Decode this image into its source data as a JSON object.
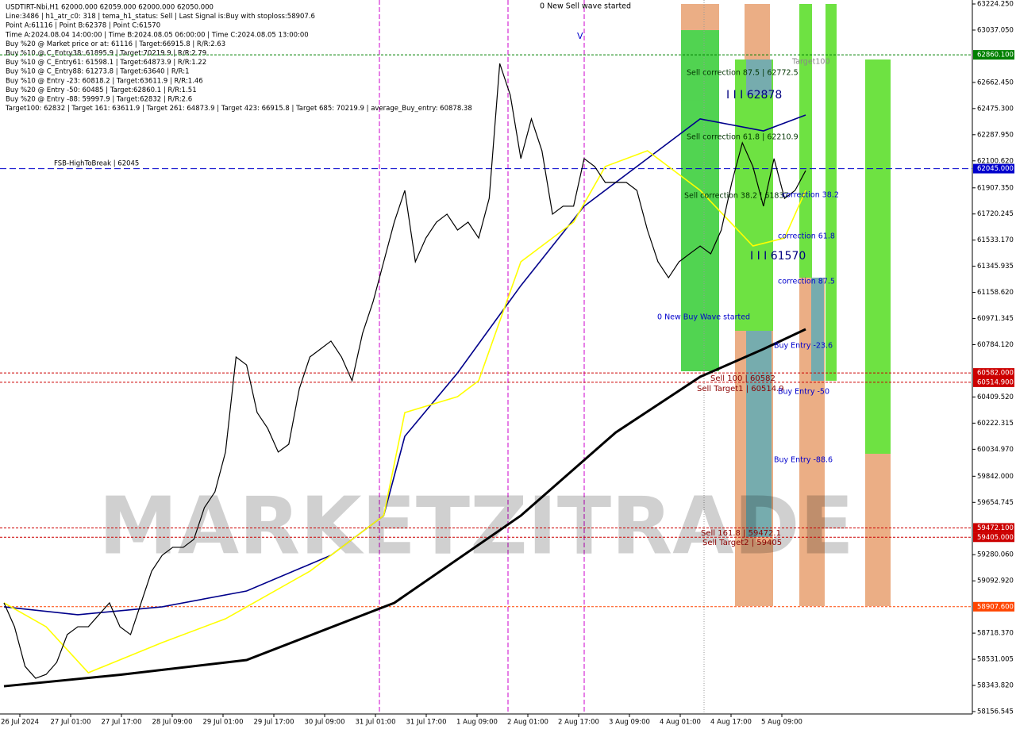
{
  "info_lines": [
    "USDTIRT-Nbi,H1  62000.000 62059.000 62000.000 62050.000",
    "Line:3486 | h1_atr_c0: 318 | tema_h1_status: Sell | Last Signal is:Buy with stoploss:58907.6",
    "Point A:61116 | Point B:62378 | Point C:61570",
    "Time A:2024.08.04 14:00:00 | Time B:2024.08.05 06:00:00 | Time C:2024.08.05 13:00:00",
    "Buy %20 @ Market price or at: 61116 | Target:66915.8 | R/R:2.63",
    "Buy %10 @ C_Entry38: 61895.9 | Target:70219.9 | R/R:2.79",
    "Buy %10 @ C_Entry61: 61598.1 | Target:64873.9 | R/R:1.22",
    "Buy %10 @ C_Entry88: 61273.8 | Target:63640 | R/R:1",
    "Buy %10 @ Entry -23: 60818.2 | Target:63611.9 | R/R:1.46",
    "Buy %20 @ Entry -50: 60485 | Target:62860.1 | R/R:1.51",
    "Buy %20 @ Entry -88: 59997.9 | Target:62832 | R/R:2.6",
    "Target100: 62832 | Target 161: 63611.9 | Target 261: 64873.9 | Target 423: 66915.8 | Target 685: 70219.9 | average_Buy_entry: 60878.38"
  ],
  "chart_data": {
    "type": "line",
    "series": [
      {
        "color": "#000000",
        "values": [
          58935,
          58764,
          58480,
          58395,
          58423,
          58509,
          58708,
          58764,
          58764,
          58850,
          58935,
          58764,
          58708,
          58935,
          59162,
          59276,
          59333,
          59333,
          59390,
          59617,
          59730,
          60015,
          60696,
          60639,
          60298,
          60185,
          60015,
          60071,
          60469,
          60696,
          60753,
          60810,
          60696,
          60526,
          60867,
          61094,
          61378,
          61662,
          61889,
          61378,
          61548,
          61662,
          61719,
          61605,
          61662,
          61548,
          61832,
          62798,
          62571,
          62117,
          62401,
          62173,
          61719,
          61776,
          61776,
          62117,
          62060,
          61946,
          61946,
          61946,
          61889,
          61605,
          61378,
          61264,
          61378,
          61435,
          61491,
          61435,
          61605,
          61946,
          62230,
          62060,
          61776,
          62117,
          61832,
          61889,
          62031
        ]
      }
    ],
    "indicators": [
      {
        "color": "#000000",
        "x": [
          0,
          11,
          23,
          37,
          49,
          58,
          66,
          72,
          76
        ],
        "values": [
          58338,
          58420,
          58526,
          58935,
          59560,
          60156,
          60554,
          60753,
          60895
        ]
      },
      {
        "color": "#00008b",
        "x": [
          0,
          7,
          15,
          23,
          31,
          36,
          38,
          43,
          49,
          55,
          61,
          66,
          72,
          76
        ],
        "values": [
          58907,
          58850,
          58907,
          59020,
          59276,
          59560,
          60128,
          60582,
          61207,
          61776,
          62117,
          62401,
          62315,
          62429
        ]
      },
      {
        "color": "#ffff00",
        "x": [
          0,
          4,
          8,
          15,
          21,
          29,
          36,
          38,
          43,
          45,
          49,
          54,
          57,
          61,
          66,
          71,
          74,
          76
        ],
        "values": [
          58935,
          58764,
          58435,
          58651,
          58821,
          59162,
          59560,
          60298,
          60412,
          60526,
          61378,
          61662,
          62060,
          62173,
          61889,
          61491,
          61548,
          61889
        ]
      }
    ],
    "ylim": [
      58156.545,
      63224.25
    ],
    "yticks": [
      {
        "value": 63224.25,
        "label": "63224.250"
      },
      {
        "value": 63037.05,
        "label": "63037.050"
      },
      {
        "value": 62662.45,
        "label": "62662.450"
      },
      {
        "value": 62475.3,
        "label": "62475.300"
      },
      {
        "value": 62287.95,
        "label": "62287.950"
      },
      {
        "value": 62100.62,
        "label": "62100.620"
      },
      {
        "value": 61907.35,
        "label": "61907.350"
      },
      {
        "value": 61720.245,
        "label": "61720.245"
      },
      {
        "value": 61533.17,
        "label": "61533.170"
      },
      {
        "value": 61345.935,
        "label": "61345.935"
      },
      {
        "value": 61158.62,
        "label": "61158.620"
      },
      {
        "value": 60971.345,
        "label": "60971.345"
      },
      {
        "value": 60784.12,
        "label": "60784.120"
      },
      {
        "value": 60409.52,
        "label": "60409.520"
      },
      {
        "value": 60222.315,
        "label": "60222.315"
      },
      {
        "value": 60034.97,
        "label": "60034.970"
      },
      {
        "value": 59842,
        "label": "59842.000"
      },
      {
        "value": 59654.745,
        "label": "59654.745"
      },
      {
        "value": 59280.06,
        "label": "59280.060"
      },
      {
        "value": 59092.92,
        "label": "59092.920"
      },
      {
        "value": 58718.37,
        "label": "58718.370"
      },
      {
        "value": 58531.005,
        "label": "58531.005"
      },
      {
        "value": 58343.82,
        "label": "58343.820"
      },
      {
        "value": 58156.545,
        "label": "58156.545"
      }
    ],
    "x_labels": [
      "26 Jul 2024",
      "27 Jul 01:00",
      "27 Jul 17:00",
      "28 Jul 09:00",
      "29 Jul 01:00",
      "29 Jul 17:00",
      "30 Jul 09:00",
      "31 Jul 01:00",
      "31 Jul 17:00",
      "1 Aug 09:00",
      "2 Aug 01:00",
      "2 Aug 17:00",
      "3 Aug 09:00",
      "4 Aug 01:00",
      "4 Aug 17:00",
      "5 Aug 09:00"
    ],
    "levels": [
      {
        "value": 62860.1,
        "label": "62860.100",
        "color": "#008000"
      },
      {
        "value": 62045,
        "label": "62045.000",
        "color": "#0000cc"
      },
      {
        "value": 60582,
        "label": "60582.000",
        "color": "#cc0000"
      },
      {
        "value": 60514.9,
        "label": "60514.900",
        "color": "#cc0000"
      },
      {
        "value": 59472.1,
        "label": "59472.100",
        "color": "#cc0000"
      },
      {
        "value": 59405,
        "label": "59405.000",
        "color": "#cc0000"
      },
      {
        "value": 58907.6,
        "label": "58907.600",
        "color": "#ff4500"
      }
    ],
    "annotations": [
      "0 New Sell wave started",
      "V",
      "Target100",
      "Sell correction 87.5 | 62772.5",
      "I I I 62878",
      "Sell correction 61.8 | 62210.9",
      "Sell correction 38.2 | 61837",
      "correction 38.2",
      "correction 61.8",
      "I I I 61570",
      "correction 87.5",
      "0 New Buy Wave started",
      "Buy Entry -23.6",
      "Sell 100 | 60582",
      "Sell Target1 | 60514.9",
      "Buy Entry -50",
      "Buy Entry -88.6",
      "Sell 161.8 | 59472.1",
      "Sell Target2 | 59405",
      "FSB-HighToBreak | 62045"
    ],
    "watermark": "MARKETZITRADE"
  }
}
